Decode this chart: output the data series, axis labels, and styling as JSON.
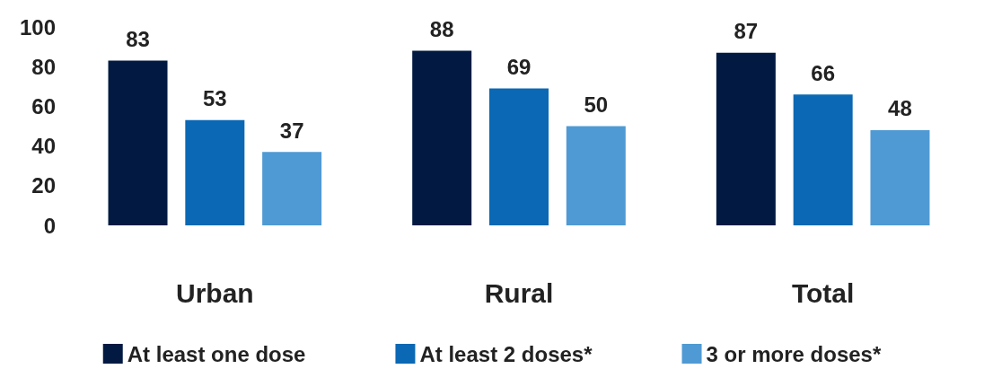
{
  "chart_data": {
    "type": "bar",
    "categories": [
      "Urban",
      "Rural",
      "Total"
    ],
    "series": [
      {
        "name": "At least one dose",
        "color": "#021a42",
        "values": [
          83,
          88,
          87
        ]
      },
      {
        "name": "At least 2 doses*",
        "color": "#0a68b4",
        "values": [
          53,
          69,
          66
        ]
      },
      {
        "name": "3 or more doses*",
        "color": "#4f9ad4",
        "values": [
          37,
          50,
          48
        ]
      }
    ],
    "ylim": [
      0,
      100
    ],
    "yticks": [
      0,
      20,
      40,
      60,
      80,
      100
    ],
    "data_labels": true,
    "legend": "bottom"
  }
}
